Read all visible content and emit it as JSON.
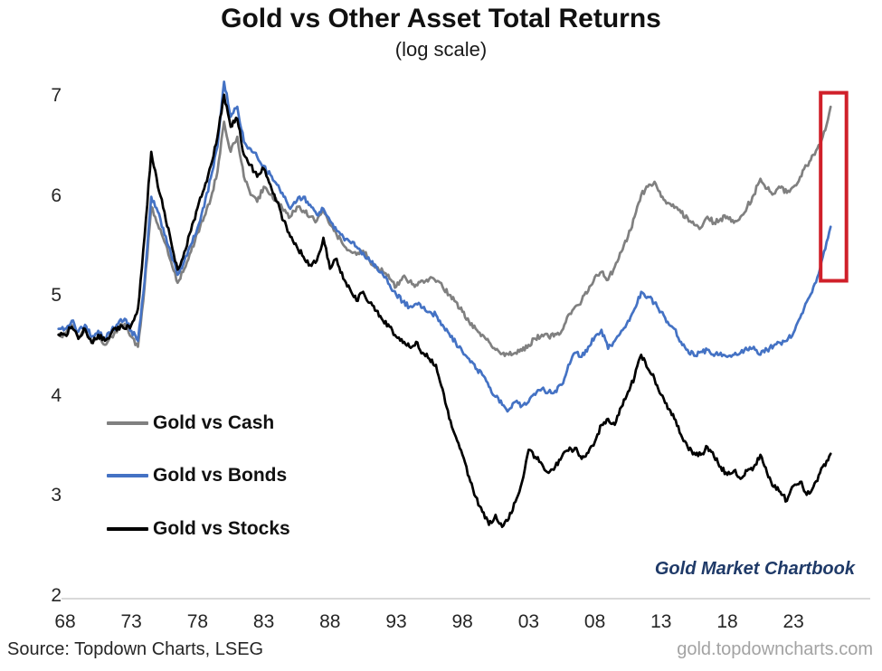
{
  "header": {
    "title": "Gold vs Other Asset Total Returns",
    "subtitle": "(log scale)"
  },
  "footer": {
    "source": "Source: Topdown Charts, LSEG",
    "website": "gold.topdowncharts.com"
  },
  "watermark": "Gold Market Chartbook",
  "colors": {
    "cash_line": "#808080",
    "bonds_line": "#4472c4",
    "stocks_line": "#000000",
    "highlight_box": "#d0202a",
    "axis_line": "#d9d9d9",
    "tick_text": "#262626",
    "watermark_text": "#1f3a68",
    "website_text": "#a3a3a3"
  },
  "chart_data": {
    "type": "line",
    "title": "Gold vs Other Asset Total Returns",
    "subtitle": "(log scale)",
    "ylim": [
      2,
      7
    ],
    "grid": "off",
    "legend_position": "inside-left",
    "y_ticks": [
      "7",
      "6",
      "5",
      "4",
      "3",
      "2"
    ],
    "x_ticks": [
      {
        "label": "68",
        "year": 1968
      },
      {
        "label": "73",
        "year": 1973
      },
      {
        "label": "78",
        "year": 1978
      },
      {
        "label": "83",
        "year": 1983
      },
      {
        "label": "88",
        "year": 1988
      },
      {
        "label": "93",
        "year": 1993
      },
      {
        "label": "98",
        "year": 1998
      },
      {
        "label": "03",
        "year": 2003
      },
      {
        "label": "08",
        "year": 2008
      },
      {
        "label": "13",
        "year": 2013
      },
      {
        "label": "18",
        "year": 2018
      },
      {
        "label": "23",
        "year": 2023
      }
    ],
    "x": [
      1967.5,
      1968.0,
      1968.5,
      1969.0,
      1969.5,
      1970.0,
      1970.5,
      1971.0,
      1971.5,
      1972.0,
      1972.5,
      1973.0,
      1973.5,
      1974.0,
      1974.5,
      1975.0,
      1975.5,
      1976.0,
      1976.5,
      1977.0,
      1977.5,
      1978.0,
      1978.5,
      1979.0,
      1979.5,
      1980.0,
      1980.5,
      1981.0,
      1981.5,
      1982.0,
      1982.5,
      1983.0,
      1983.5,
      1984.0,
      1984.5,
      1985.0,
      1985.5,
      1986.0,
      1986.5,
      1987.0,
      1987.5,
      1988.0,
      1988.5,
      1989.0,
      1989.5,
      1990.0,
      1990.5,
      1991.0,
      1991.5,
      1992.0,
      1992.5,
      1993.0,
      1993.5,
      1994.0,
      1994.5,
      1995.0,
      1995.5,
      1996.0,
      1996.5,
      1997.0,
      1997.5,
      1998.0,
      1998.5,
      1999.0,
      1999.5,
      2000.0,
      2000.5,
      2001.0,
      2001.5,
      2002.0,
      2002.5,
      2003.0,
      2003.5,
      2004.0,
      2004.5,
      2005.0,
      2005.5,
      2006.0,
      2006.5,
      2007.0,
      2007.5,
      2008.0,
      2008.5,
      2009.0,
      2009.5,
      2010.0,
      2010.5,
      2011.0,
      2011.5,
      2012.0,
      2012.5,
      2013.0,
      2013.5,
      2014.0,
      2014.5,
      2015.0,
      2015.5,
      2016.0,
      2016.5,
      2017.0,
      2017.5,
      2018.0,
      2018.5,
      2019.0,
      2019.5,
      2020.0,
      2020.5,
      2021.0,
      2021.5,
      2022.0,
      2022.5,
      2023.0,
      2023.5,
      2024.0,
      2024.5,
      2025.0,
      2025.5,
      2025.8
    ],
    "series": [
      {
        "name": "Gold vs Cash",
        "color": "#808080",
        "values": [
          4.62,
          4.62,
          4.72,
          4.6,
          4.67,
          4.54,
          4.6,
          4.52,
          4.6,
          4.68,
          4.73,
          4.6,
          4.5,
          5.1,
          5.9,
          5.72,
          5.55,
          5.35,
          5.14,
          5.28,
          5.45,
          5.64,
          5.8,
          5.98,
          6.25,
          6.75,
          6.45,
          6.6,
          6.2,
          6.02,
          5.95,
          6.1,
          6.02,
          5.95,
          5.86,
          5.8,
          5.9,
          5.86,
          5.8,
          5.76,
          5.86,
          5.72,
          5.62,
          5.52,
          5.46,
          5.42,
          5.46,
          5.36,
          5.3,
          5.25,
          5.18,
          5.1,
          5.2,
          5.15,
          5.12,
          5.16,
          5.18,
          5.15,
          5.1,
          5.02,
          4.95,
          4.85,
          4.75,
          4.68,
          4.62,
          4.55,
          4.47,
          4.43,
          4.42,
          4.44,
          4.46,
          4.52,
          4.58,
          4.62,
          4.6,
          4.63,
          4.66,
          4.82,
          4.9,
          4.96,
          5.06,
          5.2,
          5.25,
          5.17,
          5.3,
          5.45,
          5.6,
          5.8,
          6.02,
          6.1,
          6.15,
          6.0,
          5.94,
          5.89,
          5.84,
          5.79,
          5.72,
          5.69,
          5.8,
          5.74,
          5.78,
          5.8,
          5.74,
          5.8,
          5.9,
          6.02,
          6.18,
          6.08,
          6.03,
          6.09,
          6.04,
          6.1,
          6.2,
          6.31,
          6.42,
          6.52,
          6.72,
          6.9
        ]
      },
      {
        "name": "Gold vs Bonds",
        "color": "#4472c4",
        "values": [
          4.68,
          4.68,
          4.76,
          4.65,
          4.72,
          4.6,
          4.66,
          4.58,
          4.66,
          4.73,
          4.78,
          4.66,
          4.56,
          5.15,
          6.0,
          5.85,
          5.62,
          5.42,
          5.22,
          5.36,
          5.52,
          5.69,
          5.9,
          6.19,
          6.5,
          7.15,
          6.8,
          6.9,
          6.55,
          6.48,
          6.4,
          6.31,
          6.22,
          6.12,
          6.0,
          5.88,
          5.96,
          6.0,
          5.92,
          5.82,
          5.88,
          5.76,
          5.66,
          5.6,
          5.55,
          5.5,
          5.44,
          5.36,
          5.3,
          5.22,
          5.12,
          5.02,
          4.95,
          4.9,
          4.93,
          4.89,
          4.85,
          4.82,
          4.72,
          4.63,
          4.54,
          4.45,
          4.38,
          4.28,
          4.22,
          4.1,
          4.0,
          3.92,
          3.87,
          3.95,
          3.91,
          3.95,
          4.02,
          4.08,
          4.05,
          4.06,
          4.12,
          4.32,
          4.44,
          4.4,
          4.5,
          4.6,
          4.67,
          4.48,
          4.56,
          4.66,
          4.76,
          4.88,
          5.05,
          5.0,
          4.94,
          4.85,
          4.75,
          4.68,
          4.55,
          4.47,
          4.41,
          4.45,
          4.47,
          4.41,
          4.44,
          4.4,
          4.42,
          4.44,
          4.47,
          4.5,
          4.42,
          4.47,
          4.51,
          4.54,
          4.56,
          4.64,
          4.79,
          4.95,
          5.1,
          5.28,
          5.55,
          5.7
        ]
      },
      {
        "name": "Gold vs Stocks",
        "color": "#000000",
        "values": [
          4.62,
          4.62,
          4.7,
          4.58,
          4.68,
          4.54,
          4.62,
          4.56,
          4.64,
          4.7,
          4.68,
          4.72,
          4.88,
          5.6,
          6.45,
          6.1,
          5.85,
          5.55,
          5.27,
          5.45,
          5.66,
          5.89,
          6.08,
          6.31,
          6.6,
          7.02,
          6.7,
          6.78,
          6.42,
          6.32,
          6.2,
          6.28,
          6.12,
          5.95,
          5.76,
          5.6,
          5.5,
          5.4,
          5.32,
          5.36,
          5.59,
          5.28,
          5.38,
          5.18,
          5.08,
          4.96,
          5.05,
          4.94,
          4.86,
          4.76,
          4.7,
          4.6,
          4.54,
          4.5,
          4.55,
          4.44,
          4.38,
          4.32,
          4.08,
          3.78,
          3.6,
          3.42,
          3.2,
          3.0,
          2.85,
          2.72,
          2.82,
          2.7,
          2.78,
          2.95,
          3.15,
          3.47,
          3.4,
          3.33,
          3.24,
          3.3,
          3.4,
          3.46,
          3.49,
          3.38,
          3.44,
          3.55,
          3.72,
          3.78,
          3.72,
          3.9,
          4.05,
          4.2,
          4.42,
          4.28,
          4.18,
          4.02,
          3.88,
          3.78,
          3.62,
          3.5,
          3.44,
          3.42,
          3.5,
          3.4,
          3.3,
          3.22,
          3.26,
          3.18,
          3.26,
          3.3,
          3.42,
          3.24,
          3.1,
          3.05,
          2.96,
          3.11,
          3.15,
          3.02,
          3.1,
          3.24,
          3.36,
          3.43
        ]
      }
    ],
    "annotation_box": {
      "x1_year": 2025.05,
      "x2_year": 2027.0,
      "y1_value": 5.16,
      "y2_value": 7.04
    }
  }
}
